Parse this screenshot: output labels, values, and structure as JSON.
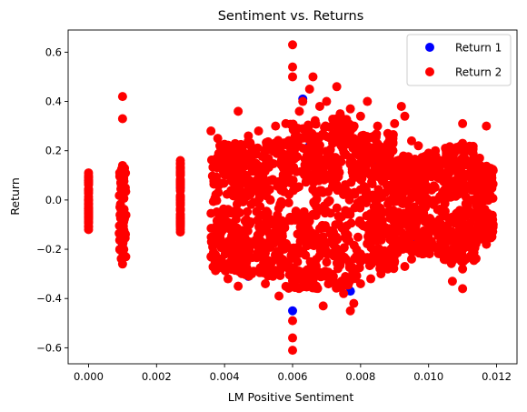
{
  "chart_data": {
    "type": "scatter",
    "title": "Sentiment vs. Returns",
    "xlabel": "LM Positive Sentiment",
    "ylabel": "Return",
    "xlim": [
      -0.0006,
      0.0126
    ],
    "ylim": [
      -0.665,
      0.69
    ],
    "x_ticks": [
      0.0,
      0.002,
      0.004,
      0.006,
      0.008,
      0.01,
      0.012
    ],
    "x_tick_labels": [
      "0.000",
      "0.002",
      "0.004",
      "0.006",
      "0.008",
      "0.010",
      "0.012"
    ],
    "y_ticks": [
      -0.6,
      -0.4,
      -0.2,
      0.0,
      0.2,
      0.4,
      0.6
    ],
    "y_tick_labels": [
      "−0.6",
      "−0.4",
      "−0.2",
      "0.0",
      "0.2",
      "0.4",
      "0.6"
    ],
    "grid": false,
    "legend_position": "top-right",
    "series": [
      {
        "name": "Return 1",
        "color": "#0000ff",
        "points": [
          [
            0.0,
            0.08
          ],
          [
            0.0,
            -0.05
          ],
          [
            0.001,
            0.12
          ],
          [
            0.001,
            -0.18
          ],
          [
            0.0027,
            0.05
          ],
          [
            0.0027,
            -0.1
          ],
          [
            0.0041,
            -0.28
          ],
          [
            0.0047,
            -0.31
          ],
          [
            0.006,
            -0.45
          ],
          [
            0.0063,
            0.41
          ],
          [
            0.0065,
            0.22
          ],
          [
            0.007,
            -0.3
          ],
          [
            0.0077,
            -0.37
          ],
          [
            0.008,
            -0.25
          ],
          [
            0.0085,
            0.15
          ],
          [
            0.0095,
            -0.15
          ],
          [
            0.0105,
            0.1
          ],
          [
            0.0115,
            -0.12
          ]
        ]
      },
      {
        "name": "Return 2",
        "color": "#ff0000",
        "points": [
          [
            0.0,
            0.11
          ],
          [
            0.0,
            -0.12
          ],
          [
            0.001,
            0.42
          ],
          [
            0.001,
            0.33
          ],
          [
            0.001,
            -0.26
          ],
          [
            0.001,
            0.14
          ],
          [
            0.0027,
            0.16
          ],
          [
            0.0027,
            -0.13
          ],
          [
            0.0036,
            0.28
          ],
          [
            0.0036,
            -0.23
          ],
          [
            0.0038,
            0.25
          ],
          [
            0.0041,
            -0.32
          ],
          [
            0.0044,
            0.36
          ],
          [
            0.0044,
            -0.35
          ],
          [
            0.0047,
            0.26
          ],
          [
            0.0048,
            -0.3
          ],
          [
            0.005,
            0.28
          ],
          [
            0.0052,
            -0.34
          ],
          [
            0.0055,
            0.3
          ],
          [
            0.0056,
            -0.39
          ],
          [
            0.0058,
            0.31
          ],
          [
            0.006,
            0.63
          ],
          [
            0.006,
            0.54
          ],
          [
            0.006,
            0.5
          ],
          [
            0.006,
            -0.56
          ],
          [
            0.006,
            -0.61
          ],
          [
            0.006,
            -0.49
          ],
          [
            0.0062,
            0.36
          ],
          [
            0.0063,
            0.4
          ],
          [
            0.0065,
            0.45
          ],
          [
            0.0066,
            0.5
          ],
          [
            0.0067,
            -0.35
          ],
          [
            0.0068,
            0.38
          ],
          [
            0.0069,
            -0.43
          ],
          [
            0.007,
            0.4
          ],
          [
            0.0072,
            -0.31
          ],
          [
            0.0073,
            0.46
          ],
          [
            0.0074,
            0.35
          ],
          [
            0.0075,
            -0.38
          ],
          [
            0.0077,
            -0.45
          ],
          [
            0.0077,
            0.37
          ],
          [
            0.0078,
            -0.42
          ],
          [
            0.008,
            0.34
          ],
          [
            0.008,
            -0.34
          ],
          [
            0.0082,
            0.4
          ],
          [
            0.0083,
            -0.32
          ],
          [
            0.0085,
            0.3
          ],
          [
            0.0086,
            -0.3
          ],
          [
            0.0088,
            0.27
          ],
          [
            0.0088,
            -0.28
          ],
          [
            0.009,
            0.31
          ],
          [
            0.009,
            -0.25
          ],
          [
            0.0092,
            0.38
          ],
          [
            0.0093,
            0.34
          ],
          [
            0.0093,
            -0.27
          ],
          [
            0.0095,
            0.24
          ],
          [
            0.0095,
            -0.24
          ],
          [
            0.0097,
            0.22
          ],
          [
            0.0097,
            -0.2
          ],
          [
            0.01,
            0.19
          ],
          [
            0.01,
            -0.2
          ],
          [
            0.0102,
            0.2
          ],
          [
            0.0102,
            -0.19
          ],
          [
            0.0105,
            0.15
          ],
          [
            0.0107,
            0.18
          ],
          [
            0.0107,
            -0.33
          ],
          [
            0.011,
            0.31
          ],
          [
            0.011,
            0.23
          ],
          [
            0.011,
            -0.28
          ],
          [
            0.011,
            -0.36
          ],
          [
            0.0113,
            0.14
          ],
          [
            0.0113,
            -0.22
          ],
          [
            0.0115,
            0.17
          ],
          [
            0.0117,
            0.3
          ],
          [
            0.0117,
            -0.18
          ],
          [
            0.0119,
            0.12
          ],
          [
            0.0119,
            -0.1
          ]
        ],
        "dense_bands": [
          {
            "x_min": 0.0,
            "x_max": 0.0,
            "y_min": -0.11,
            "y_max": 0.1
          },
          {
            "x_min": 0.0009,
            "x_max": 0.0011,
            "y_min": -0.24,
            "y_max": 0.13
          },
          {
            "x_min": 0.0027,
            "x_max": 0.0027,
            "y_min": -0.12,
            "y_max": 0.15
          },
          {
            "x_min": 0.0036,
            "x_max": 0.0044,
            "y_min": -0.29,
            "y_max": 0.23
          },
          {
            "x_min": 0.0044,
            "x_max": 0.0058,
            "y_min": -0.31,
            "y_max": 0.25
          },
          {
            "x_min": 0.0058,
            "x_max": 0.0066,
            "y_min": -0.36,
            "y_max": 0.31
          },
          {
            "x_min": 0.0066,
            "x_max": 0.0079,
            "y_min": -0.36,
            "y_max": 0.33
          },
          {
            "x_min": 0.0079,
            "x_max": 0.009,
            "y_min": -0.28,
            "y_max": 0.27
          },
          {
            "x_min": 0.009,
            "x_max": 0.0104,
            "y_min": -0.22,
            "y_max": 0.18
          },
          {
            "x_min": 0.0104,
            "x_max": 0.0114,
            "y_min": -0.26,
            "y_max": 0.22
          },
          {
            "x_min": 0.0114,
            "x_max": 0.0119,
            "y_min": -0.16,
            "y_max": 0.14
          }
        ]
      }
    ]
  }
}
